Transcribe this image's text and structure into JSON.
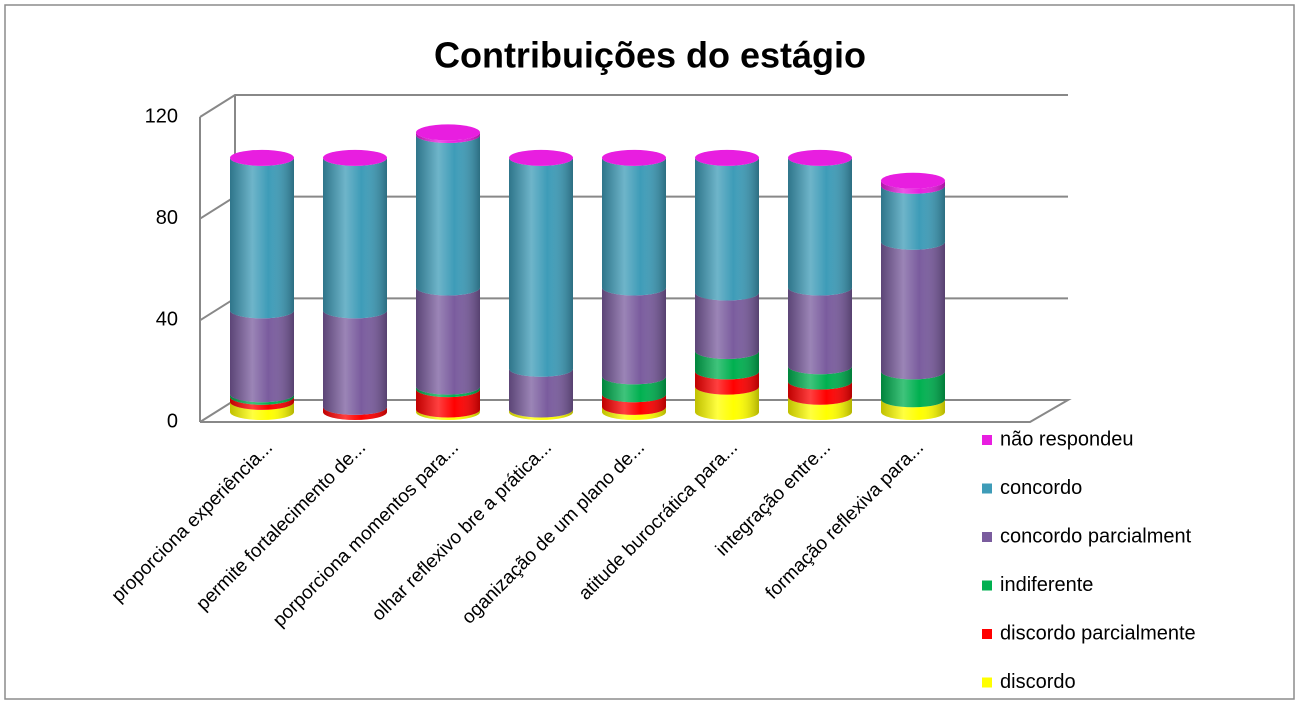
{
  "chart_data": {
    "type": "bar3d_stacked",
    "title": "Contribuições do estágio",
    "categories": [
      "proporciona experiência...",
      "permite fortalecimento de...",
      "porporciona momentos para...",
      "olhar reflexivo bre a prática...",
      "oganização de um plano de...",
      "atitude burocrática para...",
      "integração entre...",
      "formação reflexiva para..."
    ],
    "series": [
      {
        "name": "discordo",
        "color": "#ffff00",
        "values": [
          4,
          0,
          1,
          1,
          2,
          10,
          6,
          5
        ]
      },
      {
        "name": "discordo parcialmente",
        "color": "#ff0000",
        "values": [
          2,
          2,
          8,
          0,
          5,
          6,
          6,
          0
        ]
      },
      {
        "name": "indiferente",
        "color": "#00b050",
        "values": [
          1,
          0,
          1,
          0,
          7,
          8,
          6,
          11
        ]
      },
      {
        "name": "concordo parcialment",
        "color": "#7a5c9e",
        "values": [
          33,
          38,
          39,
          16,
          35,
          23,
          31,
          51
        ]
      },
      {
        "name": "concordo",
        "color": "#3e9cb8",
        "values": [
          60,
          60,
          60,
          83,
          51,
          53,
          51,
          22
        ]
      },
      {
        "name": "não respondeu",
        "color": "#e81ee0",
        "values": [
          0,
          0,
          1,
          0,
          0,
          0,
          0,
          2
        ]
      }
    ],
    "ylim": [
      0,
      120
    ],
    "yticks": [
      0,
      40,
      80,
      120
    ],
    "grid": true
  }
}
